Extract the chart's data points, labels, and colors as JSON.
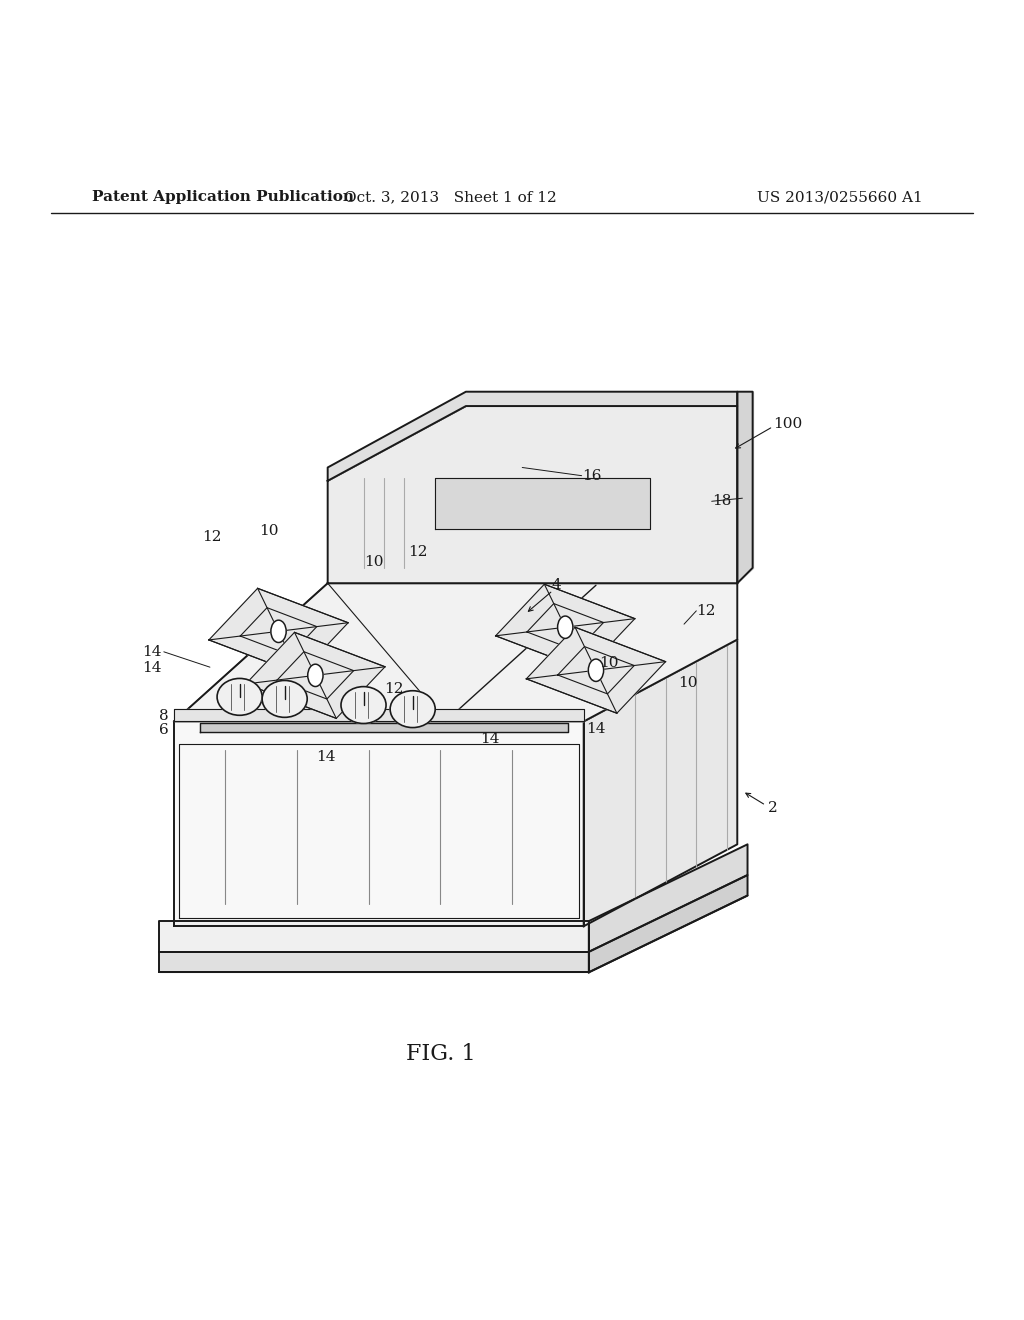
{
  "title_left": "Patent Application Publication",
  "title_center": "Oct. 3, 2013   Sheet 1 of 12",
  "title_right": "US 2013/0255660 A1",
  "fig_label": "FIG. 1",
  "background_color": "#ffffff",
  "line_color": "#1a1a1a",
  "header_fontsize": 11,
  "fig_label_fontsize": 16,
  "ref_fontsize": 11
}
